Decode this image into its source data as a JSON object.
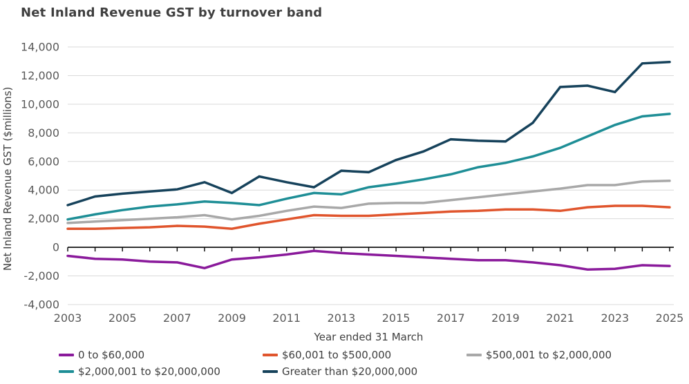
{
  "title": "Net Inland Revenue GST by turnover band",
  "chart_data": {
    "type": "line",
    "title": "Net Inland Revenue GST by turnover band",
    "xlabel": "Year ended 31 March",
    "ylabel": "Net Inland Revenue GST ($millions)",
    "x": [
      2003,
      2004,
      2005,
      2006,
      2007,
      2008,
      2009,
      2010,
      2011,
      2012,
      2013,
      2014,
      2015,
      2016,
      2017,
      2018,
      2019,
      2020,
      2021,
      2022,
      2023,
      2024,
      2025
    ],
    "x_tick_labels": [
      "2003",
      "2005",
      "2007",
      "2009",
      "2011",
      "2013",
      "2015",
      "2017",
      "2019",
      "2021",
      "2023",
      "2025"
    ],
    "y_ticks": [
      14000,
      12000,
      10000,
      8000,
      6000,
      4000,
      2000,
      0,
      -2000,
      -4000
    ],
    "y_tick_labels": [
      "14,000",
      "12,000",
      "10,000",
      "8,000",
      "6,000",
      "4,000",
      "2,000",
      "0",
      "-2,000",
      "-4,000"
    ],
    "ylim": [
      -4000,
      14000
    ],
    "grid": true,
    "legend_position": "bottom",
    "colors": {
      "gridline": "#d9d9d9",
      "zero_axis": "#000000",
      "tick_label": "#595959",
      "text": "#3f3f3f"
    },
    "series": [
      {
        "name": "0 to $60,000",
        "color": "#8A1A9B",
        "values": [
          -600,
          -800,
          -850,
          -1000,
          -1050,
          -1450,
          -850,
          -700,
          -500,
          -250,
          -400,
          -500,
          -600,
          -700,
          -800,
          -900,
          -900,
          -1050,
          -1250,
          -1550,
          -1500,
          -1250,
          -1300
        ]
      },
      {
        "name": "$60,001 to $500,000",
        "color": "#E0552D",
        "values": [
          1300,
          1300,
          1350,
          1400,
          1500,
          1450,
          1300,
          1650,
          1950,
          2250,
          2200,
          2200,
          2300,
          2400,
          2500,
          2550,
          2650,
          2650,
          2550,
          2800,
          2900,
          2900,
          2800
        ]
      },
      {
        "name": "$500,001 to $2,000,000",
        "color": "#A8A8A8",
        "values": [
          1700,
          1800,
          1900,
          2000,
          2100,
          2250,
          1950,
          2200,
          2550,
          2850,
          2750,
          3050,
          3100,
          3100,
          3300,
          3500,
          3700,
          3900,
          4100,
          4350,
          4350,
          4600,
          4650
        ]
      },
      {
        "name": "$2,000,001 to $20,000,000",
        "color": "#1E8E96",
        "values": [
          1950,
          2300,
          2600,
          2850,
          3000,
          3200,
          3100,
          2950,
          3400,
          3800,
          3700,
          4200,
          4450,
          4750,
          5100,
          5600,
          5900,
          6350,
          6950,
          7750,
          8550,
          9150,
          9325
        ]
      },
      {
        "name": "Greater than $20,000,000",
        "color": "#16425B",
        "values": [
          2950,
          3550,
          3750,
          3900,
          4050,
          4550,
          3800,
          4950,
          4550,
          4200,
          5350,
          5250,
          6100,
          6700,
          7550,
          7450,
          7400,
          8700,
          11200,
          11300,
          10850,
          12850,
          12950
        ]
      }
    ]
  },
  "legend": {
    "rows": 2,
    "columns": 3
  }
}
